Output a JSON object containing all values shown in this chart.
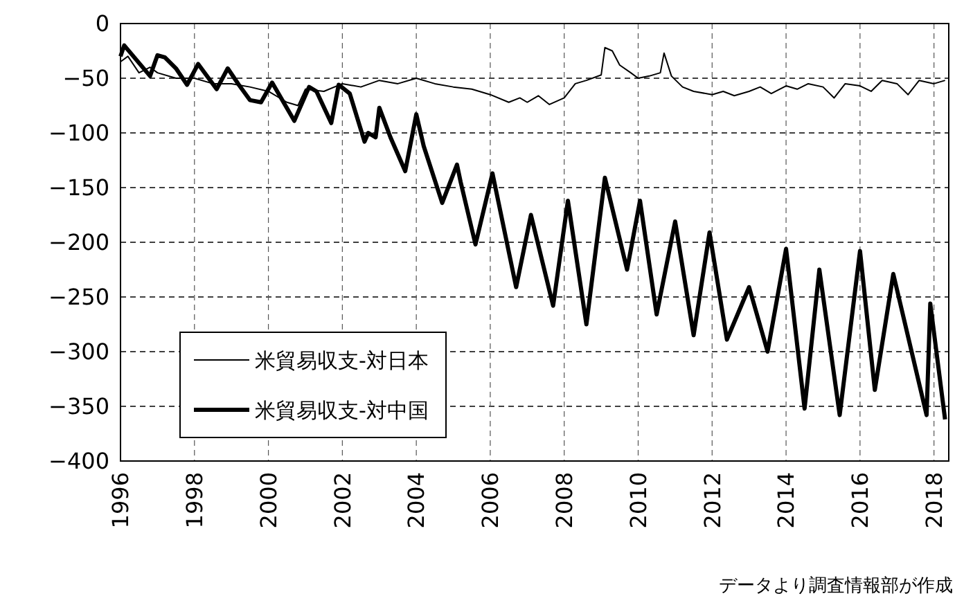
{
  "chart_data": {
    "type": "line",
    "xlim": [
      1996,
      2018.4
    ],
    "xticks": [
      1996,
      1998,
      2000,
      2002,
      2004,
      2006,
      2008,
      2010,
      2012,
      2014,
      2016,
      2018
    ],
    "ylim": [
      -400,
      0
    ],
    "yticks": [
      0,
      -50,
      -100,
      -150,
      -200,
      -250,
      -300,
      -350,
      -400
    ],
    "grid": true,
    "legend": "bottom left",
    "line_style": "solid",
    "marker": "none",
    "series": [
      {
        "name": "米貿易収支-対日本",
        "color": "#000000",
        "x": [
          1996.0,
          1996.2,
          1996.5,
          1996.8,
          1997.0,
          1997.5,
          1998.0,
          1998.5,
          1999.0,
          1999.5,
          2000.0,
          2000.5,
          2000.8,
          2001.0,
          2001.5,
          2002.0,
          2002.5,
          2003.0,
          2003.5,
          2004.0,
          2004.5,
          2005.0,
          2005.5,
          2006.0,
          2006.5,
          2006.8,
          2007.0,
          2007.3,
          2007.6,
          2008.0,
          2008.3,
          2008.6,
          2009.0,
          2009.1,
          2009.3,
          2009.5,
          2009.8,
          2010.0,
          2010.3,
          2010.6,
          2010.7,
          2010.9,
          2011.2,
          2011.5,
          2012.0,
          2012.3,
          2012.6,
          2013.0,
          2013.3,
          2013.6,
          2014.0,
          2014.3,
          2014.6,
          2015.0,
          2015.3,
          2015.6,
          2016.0,
          2016.3,
          2016.6,
          2017.0,
          2017.3,
          2017.6,
          2018.0,
          2018.3
        ],
        "values": [
          -35,
          -30,
          -45,
          -40,
          -45,
          -50,
          -50,
          -55,
          -55,
          -58,
          -62,
          -72,
          -75,
          -60,
          -62,
          -55,
          -58,
          -52,
          -55,
          -50,
          -55,
          -58,
          -60,
          -65,
          -72,
          -68,
          -72,
          -66,
          -74,
          -68,
          -55,
          -52,
          -47,
          -22,
          -25,
          -38,
          -45,
          -50,
          -48,
          -45,
          -27,
          -48,
          -58,
          -62,
          -65,
          -62,
          -66,
          -62,
          -58,
          -64,
          -57,
          -60,
          -55,
          -58,
          -68,
          -55,
          -57,
          -62,
          -52,
          -55,
          -65,
          -52,
          -55,
          -52
        ]
      },
      {
        "name": "米貿易収支-対中国",
        "color": "#000000",
        "x": [
          1996.0,
          1996.1,
          1996.8,
          1997.0,
          1997.2,
          1997.5,
          1997.8,
          1998.1,
          1998.6,
          1998.9,
          1999.2,
          1999.5,
          1999.8,
          2000.1,
          2000.7,
          2001.1,
          2001.3,
          2001.7,
          2001.9,
          2002.2,
          2002.6,
          2002.7,
          2002.9,
          2003.0,
          2003.3,
          2003.7,
          2004.0,
          2004.2,
          2004.7,
          2005.1,
          2005.2,
          2005.6,
          2006.06,
          2006.7,
          2007.1,
          2007.7,
          2008.1,
          2008.6,
          2009.1,
          2009.7,
          2010.05,
          2010.5,
          2011.0,
          2011.5,
          2011.93,
          2012.4,
          2013.0,
          2013.5,
          2014.0,
          2014.5,
          2014.9,
          2015.45,
          2016.0,
          2016.4,
          2016.9,
          2017.8,
          2017.9,
          2018.3
        ],
        "values": [
          -30,
          -20,
          -48,
          -29,
          -31,
          -41,
          -56,
          -37,
          -60,
          -41,
          -56,
          -70,
          -72,
          -54,
          -89,
          -58,
          -62,
          -91,
          -56,
          -64,
          -108,
          -100,
          -104,
          -77,
          -104,
          -135,
          -83,
          -112,
          -164,
          -129,
          -145,
          -202,
          -137,
          -241,
          -175,
          -258,
          -162,
          -275,
          -141,
          -225,
          -162,
          -266,
          -181,
          -285,
          -191,
          -289,
          -241,
          -300,
          -206,
          -352,
          -225,
          -358,
          -208,
          -335,
          -229,
          -358,
          -256,
          -362
        ]
      }
    ],
    "annotations": [
      "データより調査情報部が作成"
    ]
  }
}
